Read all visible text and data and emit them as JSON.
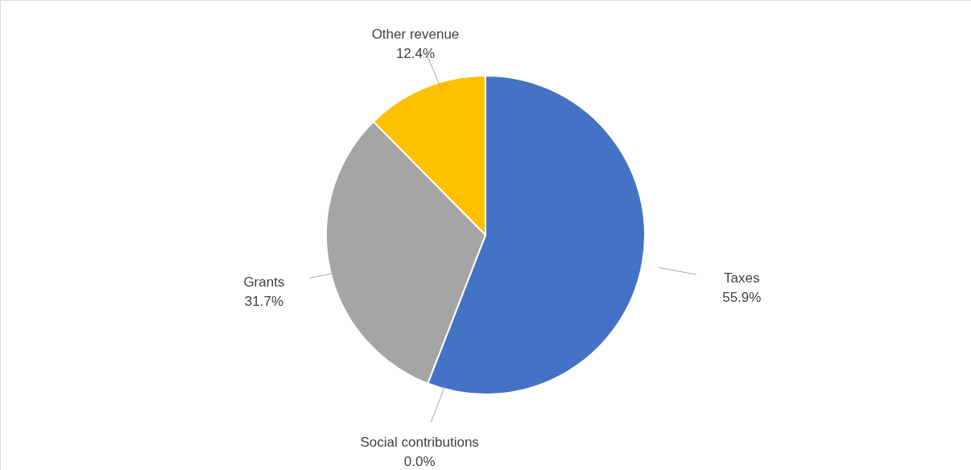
{
  "chart_data": {
    "type": "pie",
    "categories": [
      "Taxes",
      "Social contributions",
      "Grants",
      "Other revenue"
    ],
    "values": [
      55.9,
      0.0,
      31.7,
      12.4
    ],
    "colors": [
      "#4472c4",
      "#ed7d31",
      "#a5a5a5",
      "#ffc000"
    ],
    "value_labels": [
      "55.9%",
      "0.0%",
      "31.7%",
      "12.4%"
    ]
  }
}
